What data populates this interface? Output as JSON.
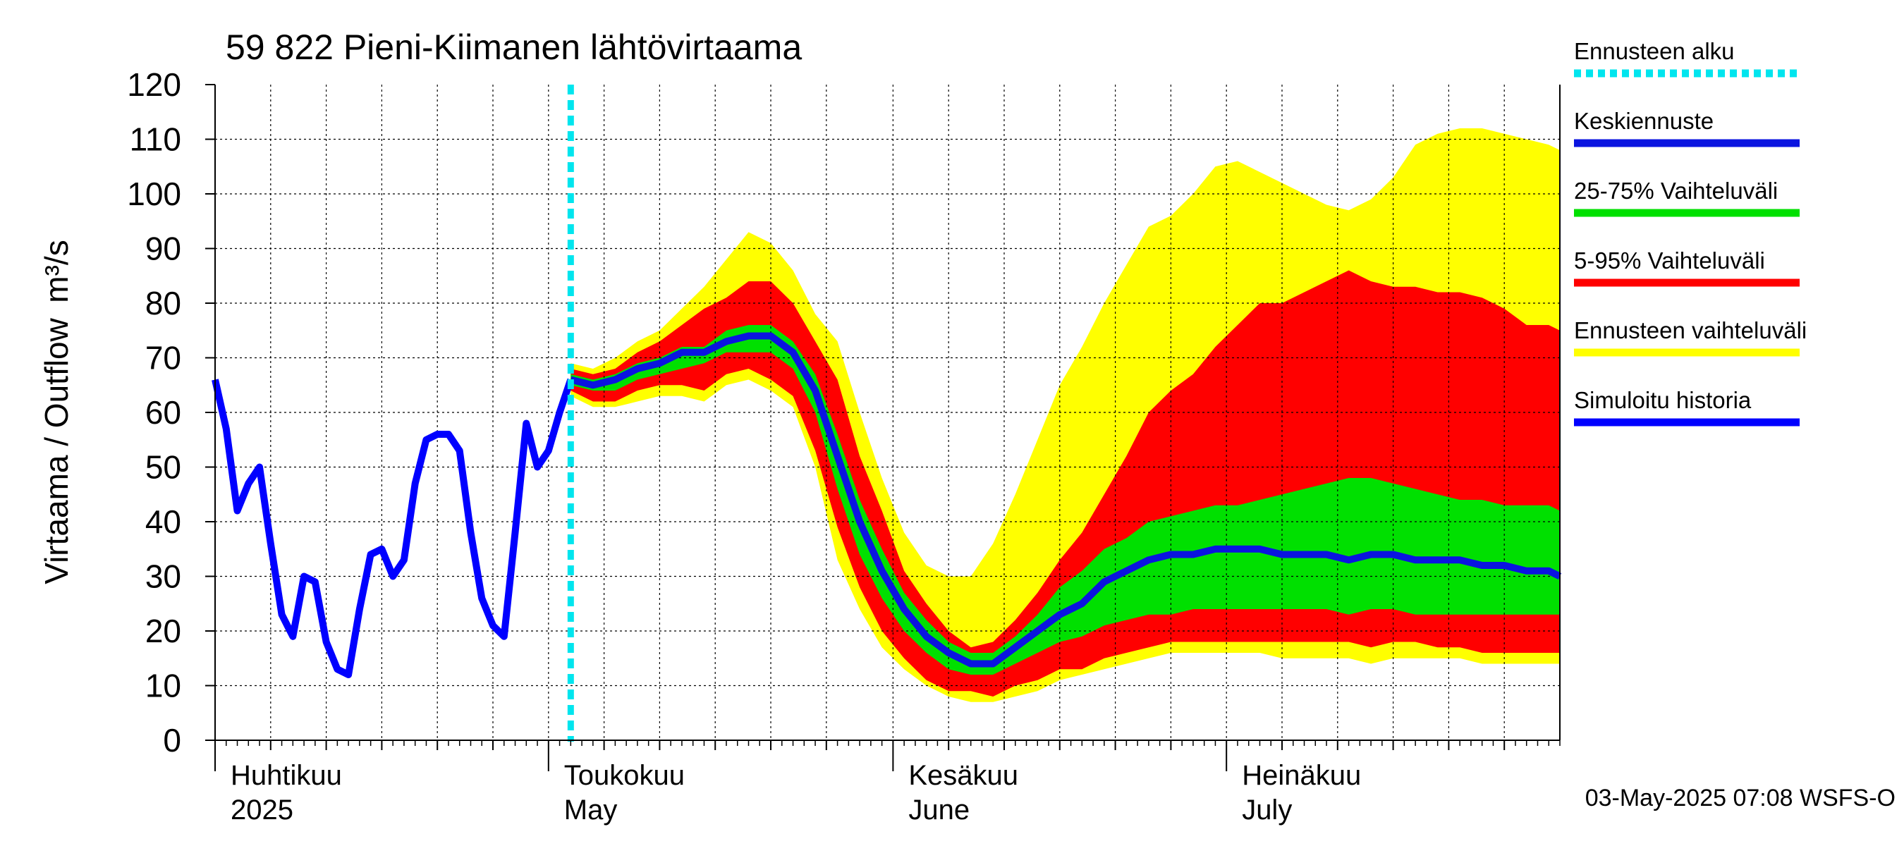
{
  "chart_data": {
    "type": "area",
    "title": "59 822 Pieni-Kiimanen lähtövirtaama",
    "ylabel": "Virtaama / Outflow",
    "yunit": "m³/s",
    "ylim": [
      0,
      120
    ],
    "yticks": [
      0,
      10,
      20,
      30,
      40,
      50,
      60,
      70,
      80,
      90,
      100,
      110,
      120
    ],
    "xlim": [
      "2025-04-01",
      "2025-07-31"
    ],
    "grid": true,
    "legend_position": "right",
    "months": [
      {
        "fi": "Huhtikuu",
        "en": "2025",
        "start": "2025-04-01"
      },
      {
        "fi": "Toukokuu",
        "en": "May",
        "start": "2025-05-01"
      },
      {
        "fi": "Kesäkuu",
        "en": "June",
        "start": "2025-06-01"
      },
      {
        "fi": "Heinäkuu",
        "en": "July",
        "start": "2025-07-01"
      }
    ],
    "forecast_start": "2025-05-03",
    "timestamp": "03-May-2025 07:08 WSFS-O",
    "colors": {
      "forecast_start": "#00e5ee",
      "median": "#0a14e0",
      "p25_75": "#00e000",
      "p5_95": "#ff0000",
      "range": "#ffff00",
      "history": "#0000ff",
      "grid": "#000000"
    },
    "legend": [
      {
        "label": "Ennusteen alku",
        "color": "#00e5ee",
        "style": "dotted"
      },
      {
        "label": "Keskiennuste",
        "color": "#0a14e0",
        "style": "line"
      },
      {
        "label": "25-75% Vaihteluväli",
        "color": "#00e000",
        "style": "band"
      },
      {
        "label": "5-95% Vaihteluväli",
        "color": "#ff0000",
        "style": "band"
      },
      {
        "label": "Ennusteen vaihteluväli",
        "color": "#ffff00",
        "style": "band"
      },
      {
        "label": "Simuloitu historia",
        "color": "#0000ff",
        "style": "line"
      }
    ],
    "history": {
      "x": [
        "2025-04-01",
        "2025-04-02",
        "2025-04-03",
        "2025-04-04",
        "2025-04-05",
        "2025-04-06",
        "2025-04-07",
        "2025-04-08",
        "2025-04-09",
        "2025-04-10",
        "2025-04-11",
        "2025-04-12",
        "2025-04-13",
        "2025-04-14",
        "2025-04-15",
        "2025-04-16",
        "2025-04-17",
        "2025-04-18",
        "2025-04-19",
        "2025-04-20",
        "2025-04-21",
        "2025-04-22",
        "2025-04-23",
        "2025-04-24",
        "2025-04-25",
        "2025-04-26",
        "2025-04-27",
        "2025-04-28",
        "2025-04-29",
        "2025-04-30",
        "2025-05-01",
        "2025-05-02",
        "2025-05-03"
      ],
      "y": [
        66,
        57,
        42,
        47,
        50,
        36,
        23,
        19,
        30,
        29,
        18,
        13,
        12,
        24,
        34,
        35,
        30,
        33,
        47,
        55,
        56,
        56,
        53,
        38,
        26,
        21,
        19,
        38,
        58,
        50,
        53,
        60,
        66
      ]
    },
    "forecast": {
      "x": [
        "2025-05-03",
        "2025-05-05",
        "2025-05-07",
        "2025-05-09",
        "2025-05-11",
        "2025-05-13",
        "2025-05-15",
        "2025-05-17",
        "2025-05-19",
        "2025-05-21",
        "2025-05-23",
        "2025-05-25",
        "2025-05-27",
        "2025-05-29",
        "2025-05-31",
        "2025-06-02",
        "2025-06-04",
        "2025-06-06",
        "2025-06-08",
        "2025-06-10",
        "2025-06-12",
        "2025-06-14",
        "2025-06-16",
        "2025-06-18",
        "2025-06-20",
        "2025-06-22",
        "2025-06-24",
        "2025-06-26",
        "2025-06-28",
        "2025-06-30",
        "2025-07-02",
        "2025-07-04",
        "2025-07-06",
        "2025-07-08",
        "2025-07-10",
        "2025-07-12",
        "2025-07-14",
        "2025-07-16",
        "2025-07-18",
        "2025-07-20",
        "2025-07-22",
        "2025-07-24",
        "2025-07-26",
        "2025-07-28",
        "2025-07-30",
        "2025-07-31"
      ],
      "median": [
        66,
        65,
        66,
        68,
        69,
        71,
        71,
        73,
        74,
        74,
        71,
        64,
        52,
        40,
        31,
        24,
        19,
        16,
        14,
        14,
        17,
        20,
        23,
        25,
        29,
        31,
        33,
        34,
        34,
        35,
        35,
        35,
        34,
        34,
        34,
        33,
        34,
        34,
        33,
        33,
        33,
        32,
        32,
        31,
        31,
        30
      ],
      "p25": [
        65,
        64,
        64,
        66,
        67,
        68,
        69,
        71,
        71,
        71,
        68,
        60,
        46,
        34,
        26,
        20,
        16,
        13,
        12,
        12,
        14,
        16,
        18,
        19,
        21,
        22,
        23,
        23,
        24,
        24,
        24,
        24,
        24,
        24,
        24,
        23,
        24,
        24,
        23,
        23,
        23,
        23,
        23,
        23,
        23,
        23
      ],
      "p75": [
        67,
        66,
        67,
        69,
        70,
        72,
        72,
        75,
        76,
        76,
        73,
        67,
        56,
        44,
        35,
        27,
        22,
        18,
        16,
        16,
        19,
        23,
        28,
        31,
        35,
        37,
        40,
        41,
        42,
        43,
        43,
        44,
        45,
        46,
        47,
        48,
        48,
        47,
        46,
        45,
        44,
        44,
        43,
        43,
        43,
        42
      ],
      "p5": [
        64,
        62,
        62,
        64,
        65,
        65,
        64,
        67,
        68,
        66,
        63,
        53,
        39,
        28,
        20,
        15,
        11,
        9,
        9,
        8,
        10,
        11,
        13,
        13,
        15,
        16,
        17,
        18,
        18,
        18,
        18,
        18,
        18,
        18,
        18,
        18,
        17,
        18,
        18,
        17,
        17,
        16,
        16,
        16,
        16,
        16
      ],
      "p95": [
        68,
        67,
        68,
        71,
        73,
        76,
        79,
        81,
        84,
        84,
        80,
        73,
        66,
        52,
        42,
        31,
        25,
        20,
        17,
        18,
        22,
        27,
        33,
        38,
        45,
        52,
        60,
        64,
        67,
        72,
        76,
        80,
        80,
        82,
        84,
        86,
        84,
        83,
        83,
        82,
        82,
        81,
        79,
        76,
        76,
        75
      ],
      "min": [
        63,
        61,
        61,
        62,
        63,
        63,
        62,
        65,
        66,
        64,
        61,
        50,
        33,
        24,
        17,
        13,
        10,
        8,
        7,
        7,
        8,
        9,
        11,
        12,
        13,
        14,
        15,
        16,
        16,
        16,
        16,
        16,
        15,
        15,
        15,
        15,
        14,
        15,
        15,
        15,
        15,
        14,
        14,
        14,
        14,
        14
      ],
      "max": [
        69,
        68,
        70,
        73,
        75,
        79,
        83,
        88,
        93,
        91,
        86,
        78,
        73,
        60,
        48,
        38,
        32,
        30,
        30,
        36,
        45,
        55,
        65,
        72,
        80,
        87,
        94,
        96,
        100,
        105,
        106,
        104,
        102,
        100,
        98,
        97,
        99,
        103,
        109,
        111,
        112,
        112,
        111,
        110,
        109,
        108
      ]
    }
  }
}
